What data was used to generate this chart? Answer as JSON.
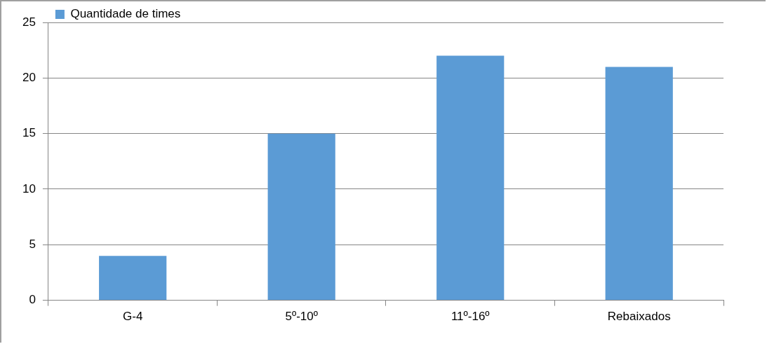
{
  "chart_data": {
    "type": "bar",
    "categories": [
      "G-4",
      "5º-10º",
      "11º-16º",
      "Rebaixados"
    ],
    "series": [
      {
        "name": "Quantidade de times",
        "color": "#5b9bd5",
        "values": [
          4,
          15,
          22,
          21
        ]
      }
    ],
    "ylim": [
      0,
      25
    ],
    "yticks": [
      0,
      5,
      10,
      15,
      20,
      25
    ],
    "grid": "y",
    "legend": "top left"
  }
}
